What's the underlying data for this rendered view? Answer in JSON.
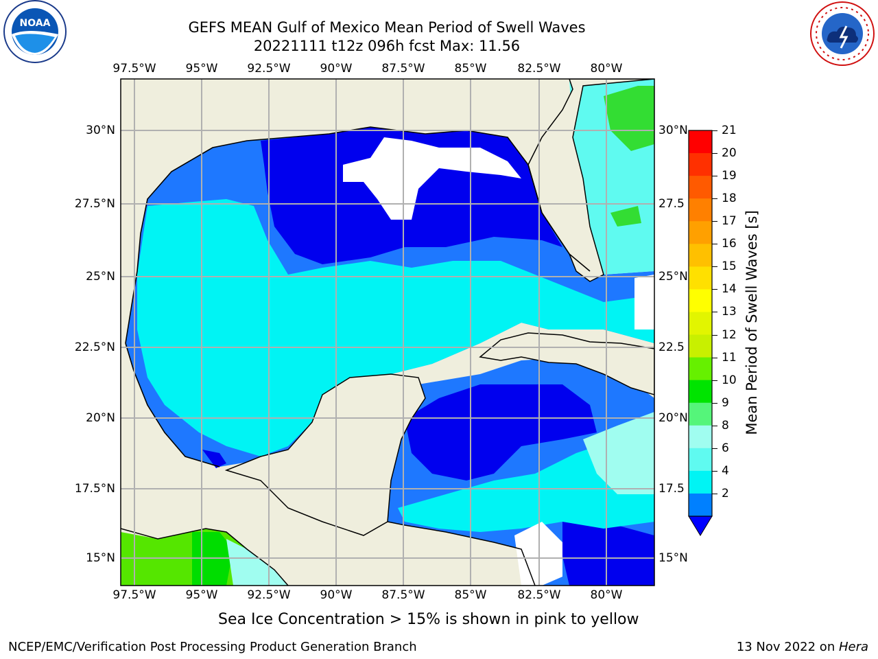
{
  "title": {
    "line1": "GEFS MEAN Gulf of Mexico Mean Period of Swell Waves",
    "line2": "20221111 t12z 096h fcst   Max: 11.56"
  },
  "map": {
    "lon_labels": [
      "97.5°W",
      "95°W",
      "92.5°W",
      "90°W",
      "87.5°W",
      "85°W",
      "82.5°W",
      "80°W"
    ],
    "lat_labels_left": [
      "30°N",
      "27.5°N",
      "25°N",
      "22.5°N",
      "20°N",
      "17.5°N",
      "15°N"
    ],
    "lat_labels_right": [
      "30°N",
      "27.5",
      "25°N",
      "22.5",
      "20°N",
      "17.5",
      "15°N"
    ]
  },
  "colorbar": {
    "label": "Mean Period of Swell Waves [s]",
    "ticks": [
      "21",
      "20",
      "19",
      "18",
      "17",
      "16",
      "15",
      "14",
      "13",
      "12",
      "11",
      "10",
      "9",
      "8",
      "6",
      "4",
      "2"
    ],
    "colors": [
      "#ff0000",
      "#ff3000",
      "#ff5a00",
      "#ff8000",
      "#ffa000",
      "#ffc000",
      "#ffe000",
      "#ffff00",
      "#e2f500",
      "#c8f000",
      "#66f000",
      "#00e400",
      "#55f57a",
      "#a0fdf0",
      "#5ffaf0",
      "#00f4f4",
      "#0080ff"
    ],
    "extend_color": "#0000ff"
  },
  "note": "Sea Ice Concentration > 15% is shown in pink to yellow",
  "footer": {
    "left": "NCEP/EMC/Verification Post Processing Product Generation Branch",
    "right_prefix": "13 Nov 2022 on ",
    "right_host": "Hera"
  },
  "logos": {
    "noaa": "NOAA",
    "nws_ring": "NATIONAL WEATHER SERVICE"
  },
  "colors": {
    "land": "#efeedd",
    "ocean_dark": "#0000ee",
    "ocean_mid": "#1e78ff",
    "ocean_cyan": "#00f4f4",
    "ocean_light": "#5ffaf0",
    "green": "#33dd33",
    "grid": "#b0b0b0"
  }
}
